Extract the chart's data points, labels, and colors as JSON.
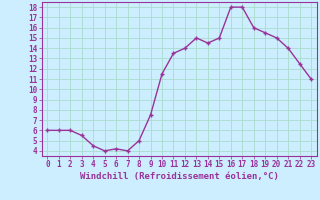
{
  "x": [
    0,
    1,
    2,
    3,
    4,
    5,
    6,
    7,
    8,
    9,
    10,
    11,
    12,
    13,
    14,
    15,
    16,
    17,
    18,
    19,
    20,
    21,
    22,
    23
  ],
  "y": [
    6,
    6,
    6,
    5.5,
    4.5,
    4,
    4.2,
    4,
    5,
    7.5,
    11.5,
    13.5,
    14,
    15,
    14.5,
    15,
    18,
    18,
    16,
    15.5,
    15,
    14,
    12.5,
    11
  ],
  "line_color": "#993399",
  "marker": "+",
  "marker_size": 3,
  "xlabel": "Windchill (Refroidissement éolien,°C)",
  "xlim": [
    -0.5,
    23.5
  ],
  "ylim": [
    3.5,
    18.5
  ],
  "yticks": [
    4,
    5,
    6,
    7,
    8,
    9,
    10,
    11,
    12,
    13,
    14,
    15,
    16,
    17,
    18
  ],
  "xticks": [
    0,
    1,
    2,
    3,
    4,
    5,
    6,
    7,
    8,
    9,
    10,
    11,
    12,
    13,
    14,
    15,
    16,
    17,
    18,
    19,
    20,
    21,
    22,
    23
  ],
  "background_color": "#cceeff",
  "grid_color": "#aaddcc",
  "tick_color": "#993399",
  "axis_label_color": "#993399",
  "xlabel_fontsize": 6.5,
  "tick_fontsize": 5.5,
  "line_width": 1.0
}
